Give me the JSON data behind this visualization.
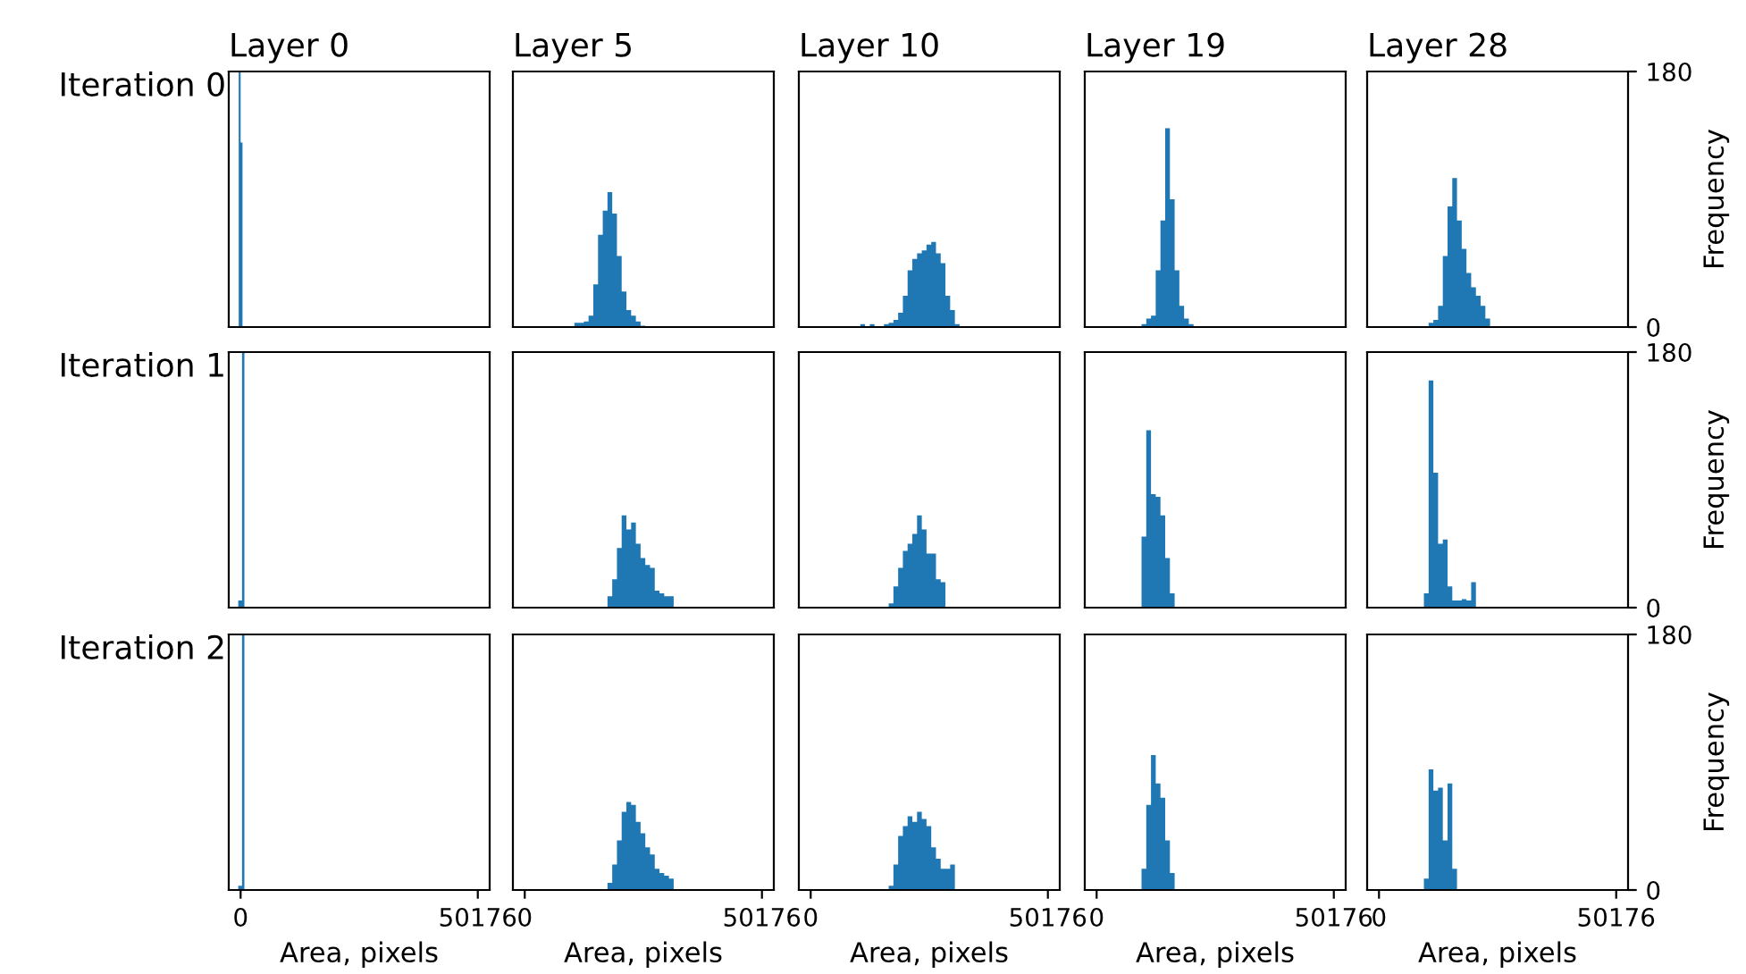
{
  "chart_data": [
    {
      "type": "histogram",
      "title": "Layer 0",
      "ylabel": "Iteration 0",
      "color": "#1f77b4",
      "bins": [
        -400,
        0,
        400
      ],
      "values": [
        180,
        130
      ],
      "xlim": [
        -2509,
        52685
      ],
      "xticks": [
        0,
        50176
      ],
      "ylim": [
        0,
        180
      ],
      "yticks": [
        0,
        180
      ],
      "tick_labels": false
    },
    {
      "type": "histogram",
      "title": "Layer 5",
      "color": "#1f77b4",
      "bins": [
        10500,
        11500,
        12500,
        13500,
        14500,
        15500,
        16500,
        17500,
        18500,
        19500,
        20500,
        21500,
        22500,
        23500,
        24500,
        25500
      ],
      "values": [
        3,
        3,
        4,
        8,
        30,
        65,
        82,
        95,
        80,
        50,
        25,
        12,
        8,
        4,
        1
      ],
      "xlim": [
        -2509,
        52685
      ],
      "xticks": [
        0,
        50176
      ],
      "ylim": [
        0,
        180
      ],
      "yticks": [
        0,
        180
      ],
      "tick_labels": false
    },
    {
      "type": "histogram",
      "title": "Layer 10",
      "color": "#1f77b4",
      "bins": [
        10500,
        11500,
        12500,
        13500,
        14500,
        15500,
        16500,
        17500,
        18500,
        19500,
        20500,
        21500,
        22500,
        23500,
        24500,
        25500,
        26500,
        27500,
        28500,
        29500,
        30500,
        31500
      ],
      "values": [
        2,
        0,
        2,
        0,
        0,
        2,
        3,
        5,
        10,
        22,
        40,
        48,
        52,
        54,
        58,
        60,
        52,
        45,
        22,
        12,
        2
      ],
      "xlim": [
        -2509,
        52685
      ],
      "xticks": [
        0,
        50176
      ],
      "ylim": [
        0,
        180
      ],
      "yticks": [
        0,
        180
      ],
      "tick_labels": false
    },
    {
      "type": "histogram",
      "title": "Layer 19",
      "color": "#1f77b4",
      "bins": [
        9500,
        10500,
        11500,
        12500,
        13500,
        14500,
        15500,
        16500,
        17500,
        18500,
        19500,
        20500
      ],
      "values": [
        2,
        6,
        8,
        40,
        75,
        140,
        90,
        40,
        15,
        6,
        2
      ],
      "xlim": [
        -2509,
        52685
      ],
      "xticks": [
        0,
        50176
      ],
      "ylim": [
        0,
        180
      ],
      "yticks": [
        0,
        180
      ],
      "tick_labels": false
    },
    {
      "type": "histogram",
      "title": "Layer 28",
      "ylabel": "Frequency",
      "color": "#1f77b4",
      "bins": [
        10500,
        11500,
        12500,
        13500,
        14500,
        15500,
        16500,
        17500,
        18500,
        19500,
        20500,
        21500,
        22500,
        23500
      ],
      "values": [
        3,
        5,
        15,
        50,
        85,
        105,
        75,
        55,
        38,
        28,
        22,
        15,
        6
      ],
      "xlim": [
        -2509,
        52685
      ],
      "xticks": [
        0,
        50176
      ],
      "ylim": [
        0,
        180
      ],
      "yticks": [
        0,
        180
      ],
      "tick_labels": "y"
    },
    {
      "type": "histogram",
      "ylabel": "Iteration 1",
      "color": "#1f77b4",
      "bins": [
        -500,
        300,
        800
      ],
      "values": [
        5,
        180
      ],
      "xlim": [
        -2509,
        52685
      ],
      "xticks": [
        0,
        50176
      ],
      "ylim": [
        0,
        180
      ],
      "yticks": [
        0,
        180
      ],
      "tick_labels": false
    },
    {
      "type": "histogram",
      "color": "#1f77b4",
      "bins": [
        17500,
        18500,
        19500,
        20500,
        21500,
        22500,
        23500,
        24500,
        25500,
        26500,
        27500,
        28500,
        29500,
        30500,
        31500
      ],
      "values": [
        8,
        20,
        42,
        65,
        55,
        60,
        45,
        35,
        30,
        28,
        12,
        10,
        8,
        8
      ],
      "xlim": [
        -2509,
        52685
      ],
      "xticks": [
        0,
        50176
      ],
      "ylim": [
        0,
        180
      ],
      "yticks": [
        0,
        180
      ],
      "tick_labels": false
    },
    {
      "type": "histogram",
      "color": "#1f77b4",
      "bins": [
        16500,
        17500,
        18500,
        19500,
        20500,
        21500,
        22500,
        23500,
        24500,
        25500,
        26500,
        27500,
        28500
      ],
      "values": [
        3,
        15,
        28,
        40,
        45,
        52,
        65,
        55,
        38,
        38,
        20,
        18
      ],
      "xlim": [
        -2509,
        52685
      ],
      "xticks": [
        0,
        50176
      ],
      "ylim": [
        0,
        180
      ],
      "yticks": [
        0,
        180
      ],
      "tick_labels": false
    },
    {
      "type": "histogram",
      "color": "#1f77b4",
      "bins": [
        9500,
        10500,
        11500,
        12500,
        13500,
        14500,
        15500,
        16500
      ],
      "values": [
        50,
        125,
        80,
        78,
        65,
        35,
        10
      ],
      "xlim": [
        -2509,
        52685
      ],
      "xticks": [
        0,
        50176
      ],
      "ylim": [
        0,
        180
      ],
      "yticks": [
        0,
        180
      ],
      "tick_labels": false
    },
    {
      "type": "histogram",
      "ylabel": "Frequency",
      "color": "#1f77b4",
      "bins": [
        9500,
        10500,
        11500,
        12500,
        13500,
        14500,
        15500,
        16500,
        17500,
        18500,
        19500,
        20500
      ],
      "values": [
        10,
        160,
        95,
        45,
        48,
        15,
        5,
        5,
        6,
        5,
        18
      ],
      "xlim": [
        -2509,
        52685
      ],
      "xticks": [
        0,
        50176
      ],
      "ylim": [
        0,
        180
      ],
      "yticks": [
        0,
        180
      ],
      "tick_labels": "y"
    },
    {
      "type": "histogram",
      "ylabel": "Iteration 2",
      "xlabel": "Area, pixels",
      "color": "#1f77b4",
      "bins": [
        -500,
        300,
        800
      ],
      "values": [
        3,
        180
      ],
      "xlim": [
        -2509,
        52685
      ],
      "xticks": [
        0,
        50176
      ],
      "ylim": [
        0,
        180
      ],
      "yticks": [
        0,
        180
      ],
      "tick_labels": "x"
    },
    {
      "type": "histogram",
      "xlabel": "Area, pixels",
      "color": "#1f77b4",
      "bins": [
        17500,
        18500,
        19500,
        20500,
        21500,
        22500,
        23500,
        24500,
        25500,
        26500,
        27500,
        28500,
        29500,
        30500,
        31500
      ],
      "values": [
        5,
        18,
        35,
        55,
        62,
        60,
        48,
        40,
        30,
        25,
        15,
        12,
        10,
        8
      ],
      "xlim": [
        -2509,
        52685
      ],
      "xticks": [
        0,
        50176
      ],
      "ylim": [
        0,
        180
      ],
      "yticks": [
        0,
        180
      ],
      "tick_labels": "x"
    },
    {
      "type": "histogram",
      "xlabel": "Area, pixels",
      "color": "#1f77b4",
      "bins": [
        16500,
        17500,
        18500,
        19500,
        20500,
        21500,
        22500,
        23500,
        24500,
        25500,
        26500,
        27500,
        28500,
        29500,
        30500
      ],
      "values": [
        3,
        18,
        38,
        45,
        52,
        48,
        55,
        50,
        45,
        30,
        22,
        15,
        15,
        18
      ],
      "xlim": [
        -2509,
        52685
      ],
      "xticks": [
        0,
        50176
      ],
      "ylim": [
        0,
        180
      ],
      "yticks": [
        0,
        180
      ],
      "tick_labels": "x"
    },
    {
      "type": "histogram",
      "xlabel": "Area, pixels",
      "color": "#1f77b4",
      "bins": [
        9500,
        10500,
        11500,
        12500,
        13500,
        14500,
        15500,
        16500
      ],
      "values": [
        15,
        60,
        95,
        75,
        65,
        35,
        12
      ],
      "xlim": [
        -2509,
        52685
      ],
      "xticks": [
        0,
        50176
      ],
      "ylim": [
        0,
        180
      ],
      "yticks": [
        0,
        180
      ],
      "tick_labels": "x"
    },
    {
      "type": "histogram",
      "xlabel": "Area, pixels",
      "ylabel": "Frequency",
      "color": "#1f77b4",
      "bins": [
        9500,
        10500,
        11500,
        12500,
        13500,
        14500,
        15500,
        16500
      ],
      "values": [
        8,
        85,
        70,
        72,
        35,
        75,
        15
      ],
      "xlim": [
        -2509,
        52685
      ],
      "xticks": [
        0,
        50176
      ],
      "ylim": [
        0,
        180
      ],
      "yticks": [
        0,
        180
      ]
    }
  ]
}
